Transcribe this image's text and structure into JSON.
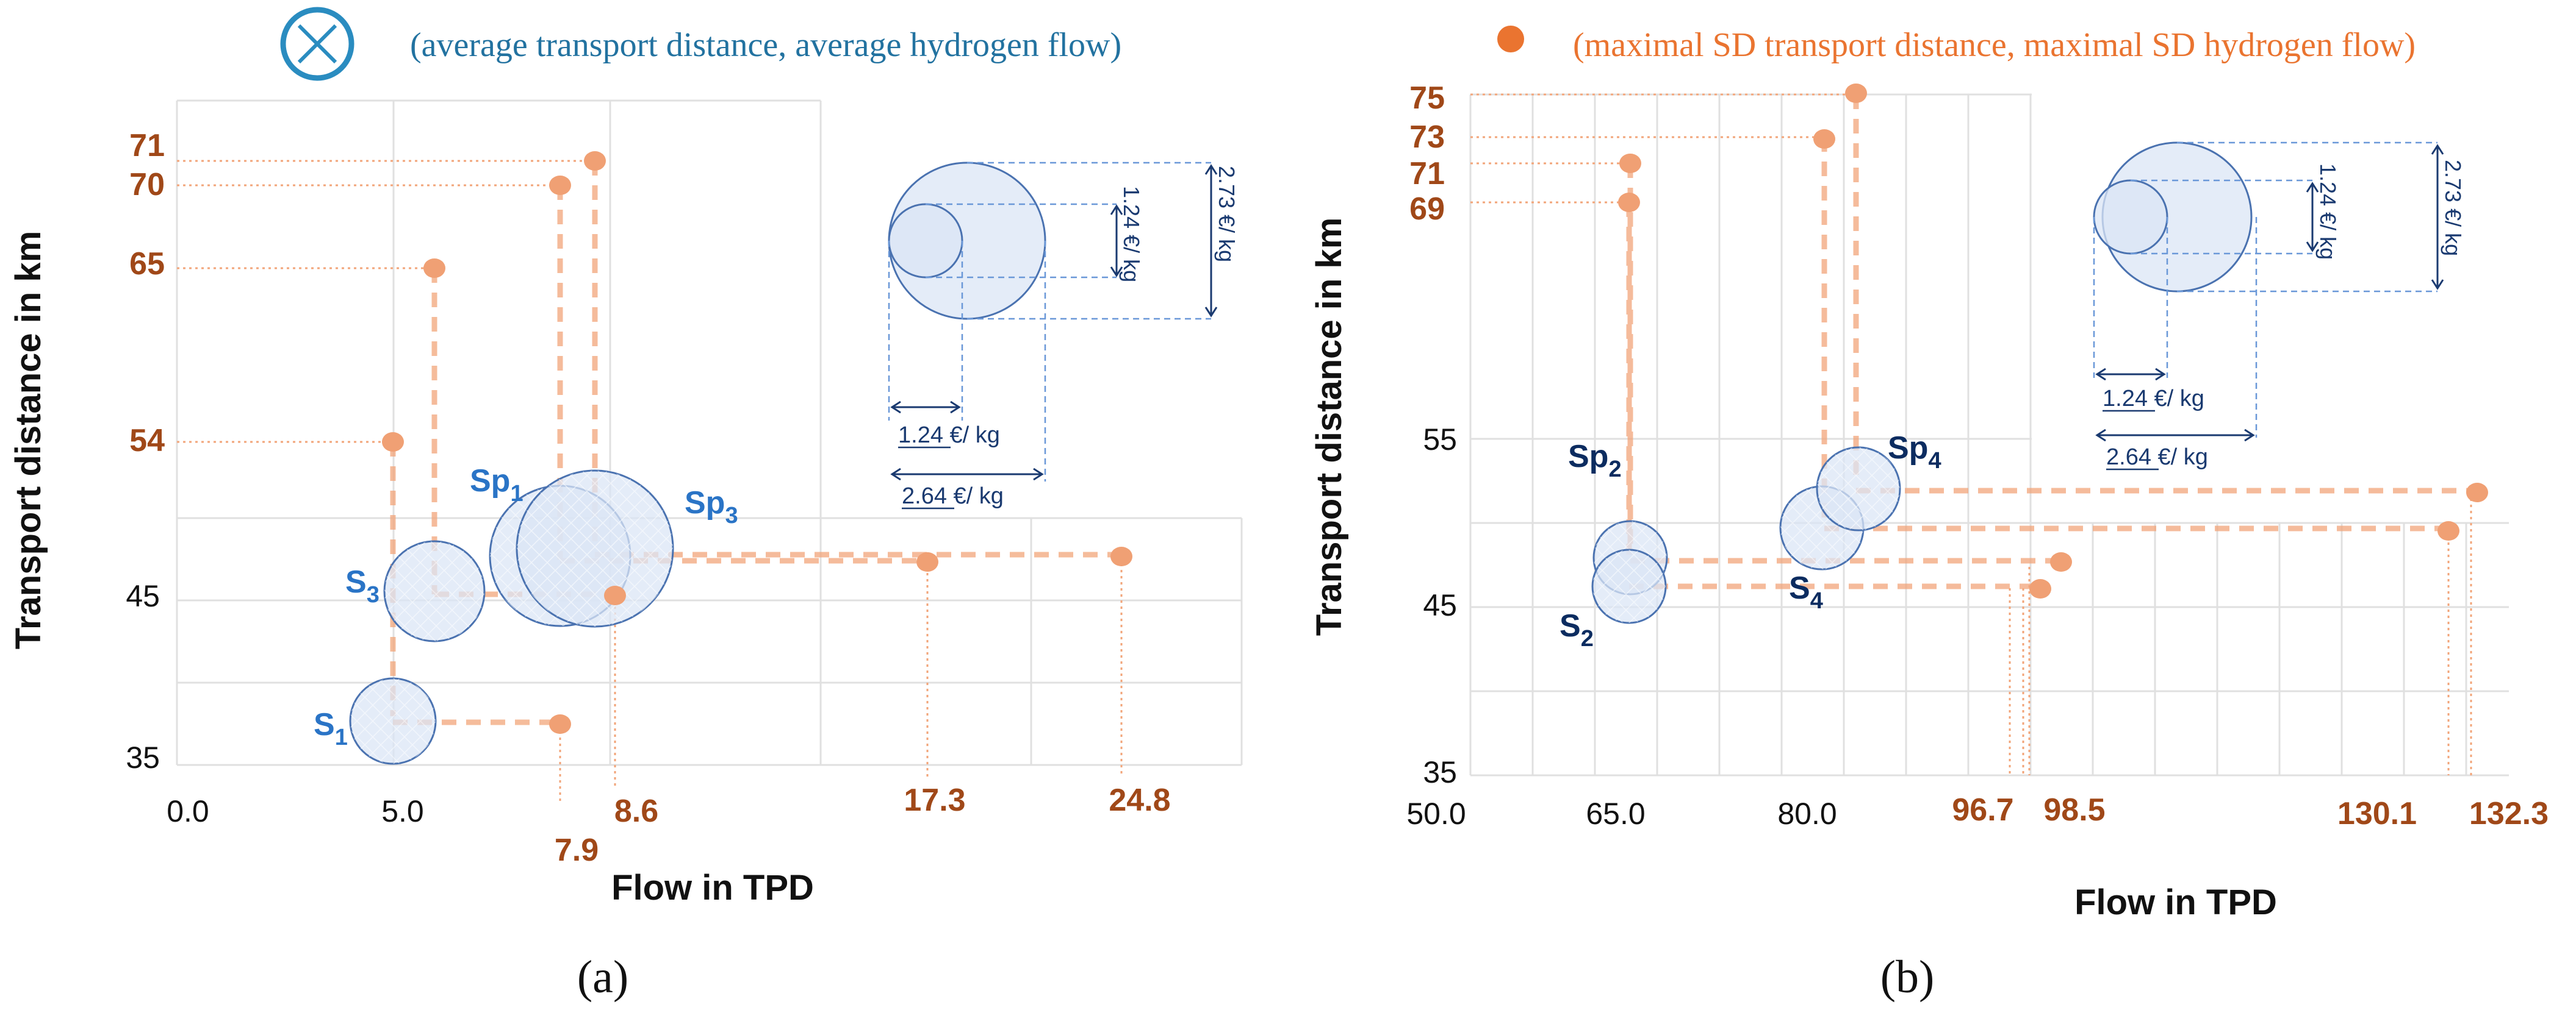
{
  "legend": {
    "avg_label": "(average transport distance, average hydrogen flow)",
    "sd_label": "(maximal SD transport distance, maximal SD hydrogen flow)"
  },
  "colors": {
    "blue_fill": "#dbe6f5",
    "blue_stroke": "#4a72b0",
    "orange": "#f2a57a",
    "orange_dot": "#f0a074",
    "brown": "#a04818",
    "blue_text": "#2a74c6",
    "navy_text": "#0c2c60",
    "legend_blue": "#2272a0",
    "legend_icon": "#2a8cc0",
    "legend_orange": "#ea7430",
    "grid": "#e0e0e0"
  },
  "chart_data": [
    {
      "type": "scatter",
      "panel_label": "(a)",
      "xlabel": "Flow in TPD",
      "ylabel": "Transport distance in km",
      "x_ticks_dark": [
        "0.0",
        "5.0"
      ],
      "x_ticks_orange": [
        "8.6",
        "17.3",
        "24.8",
        "7.9"
      ],
      "y_ticks_dark": [
        "35",
        "45"
      ],
      "y_ticks_orange": [
        "71",
        "70",
        "65",
        "54"
      ],
      "bubbles": [
        {
          "name": "S",
          "sub": "1",
          "x": 5.0,
          "y": 37.5,
          "size": "small"
        },
        {
          "name": "S",
          "sub": "3",
          "x": 5.8,
          "y": 45.2,
          "size": "medium"
        },
        {
          "name": "Sp",
          "sub": "1",
          "x": 8.1,
          "y": 47.5,
          "size": "large"
        },
        {
          "name": "Sp",
          "sub": "3",
          "x": 8.6,
          "y": 48.0,
          "size": "large"
        }
      ],
      "sd_points": [
        {
          "x": 5.0,
          "y": 54
        },
        {
          "x": 5.8,
          "y": 65
        },
        {
          "x": 7.9,
          "y": 70
        },
        {
          "x": 8.6,
          "y": 71
        },
        {
          "x": 7.9,
          "y": 37.5
        },
        {
          "x": 8.6,
          "y": 45.2
        },
        {
          "x": 17.3,
          "y": 47.1
        },
        {
          "x": 24.8,
          "y": 47.5
        }
      ],
      "size_legend": {
        "small_label": "1.24 €/ kg",
        "large_label": "2.73 €/ kg",
        "small_h_label": "1.24 €/ kg",
        "large_h_label": "2.64 €/ kg"
      }
    },
    {
      "type": "scatter",
      "panel_label": "(b)",
      "xlabel": "Flow in TPD",
      "ylabel": "Transport distance in km",
      "x_ticks_dark": [
        "50.0",
        "65.0",
        "80.0"
      ],
      "x_ticks_orange": [
        "96.7",
        "98.5",
        "130.1",
        "132.3"
      ],
      "y_ticks_dark": [
        "55",
        "45",
        "35"
      ],
      "y_ticks_orange": [
        "75",
        "73",
        "71",
        "69"
      ],
      "bubbles": [
        {
          "name": "Sp",
          "sub": "2",
          "x": 66.2,
          "y": 47.8,
          "size": "small"
        },
        {
          "name": "S",
          "sub": "2",
          "x": 66.0,
          "y": 46.2,
          "size": "small"
        },
        {
          "name": "S",
          "sub": "4",
          "x": 82.5,
          "y": 49.5,
          "size": "small"
        },
        {
          "name": "Sp",
          "sub": "4",
          "x": 85.3,
          "y": 51.9,
          "size": "small"
        }
      ],
      "sd_points": [
        {
          "x": 66.2,
          "y": 71
        },
        {
          "x": 66.0,
          "y": 69
        },
        {
          "x": 82.5,
          "y": 73
        },
        {
          "x": 85.3,
          "y": 75
        },
        {
          "x": 96.7,
          "y": 46.2
        },
        {
          "x": 98.5,
          "y": 47.8
        },
        {
          "x": 130.1,
          "y": 49.5
        },
        {
          "x": 132.3,
          "y": 51.9
        }
      ],
      "size_legend": {
        "small_label": "1.24 €/ kg",
        "large_label": "2.73 €/ kg",
        "small_h_label": "1.24 €/ kg",
        "large_h_label": "2.64 €/ kg"
      }
    }
  ]
}
